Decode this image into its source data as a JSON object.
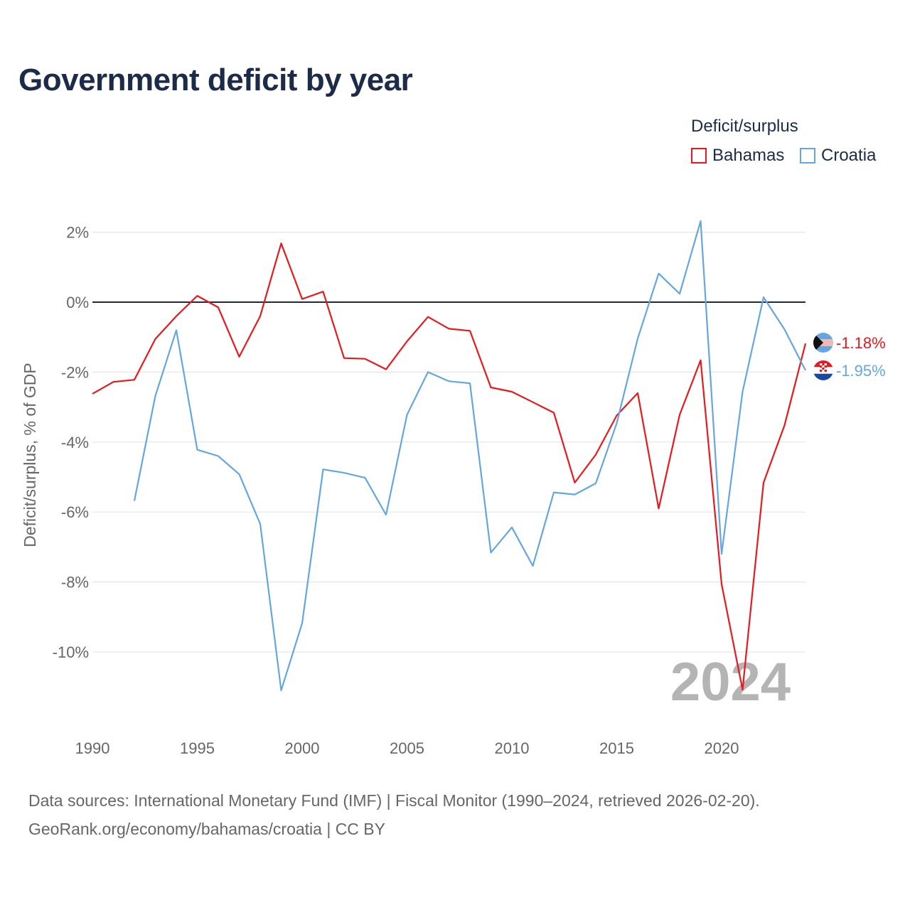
{
  "title": "Government deficit by year",
  "legend": {
    "title": "Deficit/surplus",
    "items": [
      {
        "label": "Bahamas",
        "color": "#e8191d"
      },
      {
        "label": "Croatia",
        "color": "#64a7e0"
      }
    ]
  },
  "year_watermark": "2024",
  "end_labels": {
    "bahamas": "-1.18%",
    "croatia": "-1.95%"
  },
  "source": {
    "line1": "Data sources: International Monetary Fund (IMF) | Fiscal Monitor (1990–2024, retrieved 2026-02-20).",
    "line2": "GeoRank.org/economy/bahamas/croatia | CC BY"
  },
  "chart_data": {
    "type": "line",
    "title": "Government deficit by year",
    "xlabel": "",
    "ylabel": "Deficit/surplus, % of GDP",
    "xlim": [
      1990,
      2024
    ],
    "ylim": [
      -12,
      2.5
    ],
    "x_ticks": [
      1990,
      1995,
      2000,
      2005,
      2010,
      2015,
      2020
    ],
    "y_ticks": [
      2,
      0,
      -2,
      -4,
      -6,
      -8,
      -10
    ],
    "y_tick_labels": [
      "2%",
      "0%",
      "-2%",
      "-4%",
      "-6%",
      "-8%",
      "-10%"
    ],
    "x": [
      1990,
      1991,
      1992,
      1993,
      1994,
      1995,
      1996,
      1997,
      1998,
      1999,
      2000,
      2001,
      2002,
      2003,
      2004,
      2005,
      2006,
      2007,
      2008,
      2009,
      2010,
      2011,
      2012,
      2013,
      2014,
      2015,
      2016,
      2017,
      2018,
      2019,
      2020,
      2021,
      2022,
      2023,
      2024
    ],
    "series": [
      {
        "name": "Bahamas",
        "color": "#e8191d",
        "values": [
          -2.62,
          -2.28,
          -2.22,
          -1.05,
          -0.4,
          0.18,
          -0.15,
          -1.56,
          -0.4,
          1.68,
          0.09,
          0.3,
          -1.6,
          -1.62,
          -1.92,
          -1.12,
          -0.42,
          -0.76,
          -0.82,
          -2.44,
          -2.56,
          -2.86,
          -3.16,
          -5.16,
          -4.36,
          -3.24,
          -2.6,
          -5.9,
          -3.22,
          -1.66,
          -8.06,
          -11.08,
          -5.16,
          -3.52,
          -1.18
        ]
      },
      {
        "name": "Croatia",
        "color": "#64a7e0",
        "values": [
          null,
          null,
          -5.68,
          -2.68,
          -0.8,
          -4.22,
          -4.4,
          -4.92,
          -6.34,
          -11.1,
          -9.18,
          -4.78,
          -4.88,
          -5.02,
          -6.08,
          -3.22,
          -2.0,
          -2.26,
          -2.32,
          -7.16,
          -6.44,
          -7.54,
          -5.44,
          -5.5,
          -5.18,
          -3.46,
          -1.04,
          0.82,
          0.24,
          2.32,
          -7.2,
          -2.56,
          0.14,
          -0.78,
          -1.95
        ]
      }
    ]
  }
}
